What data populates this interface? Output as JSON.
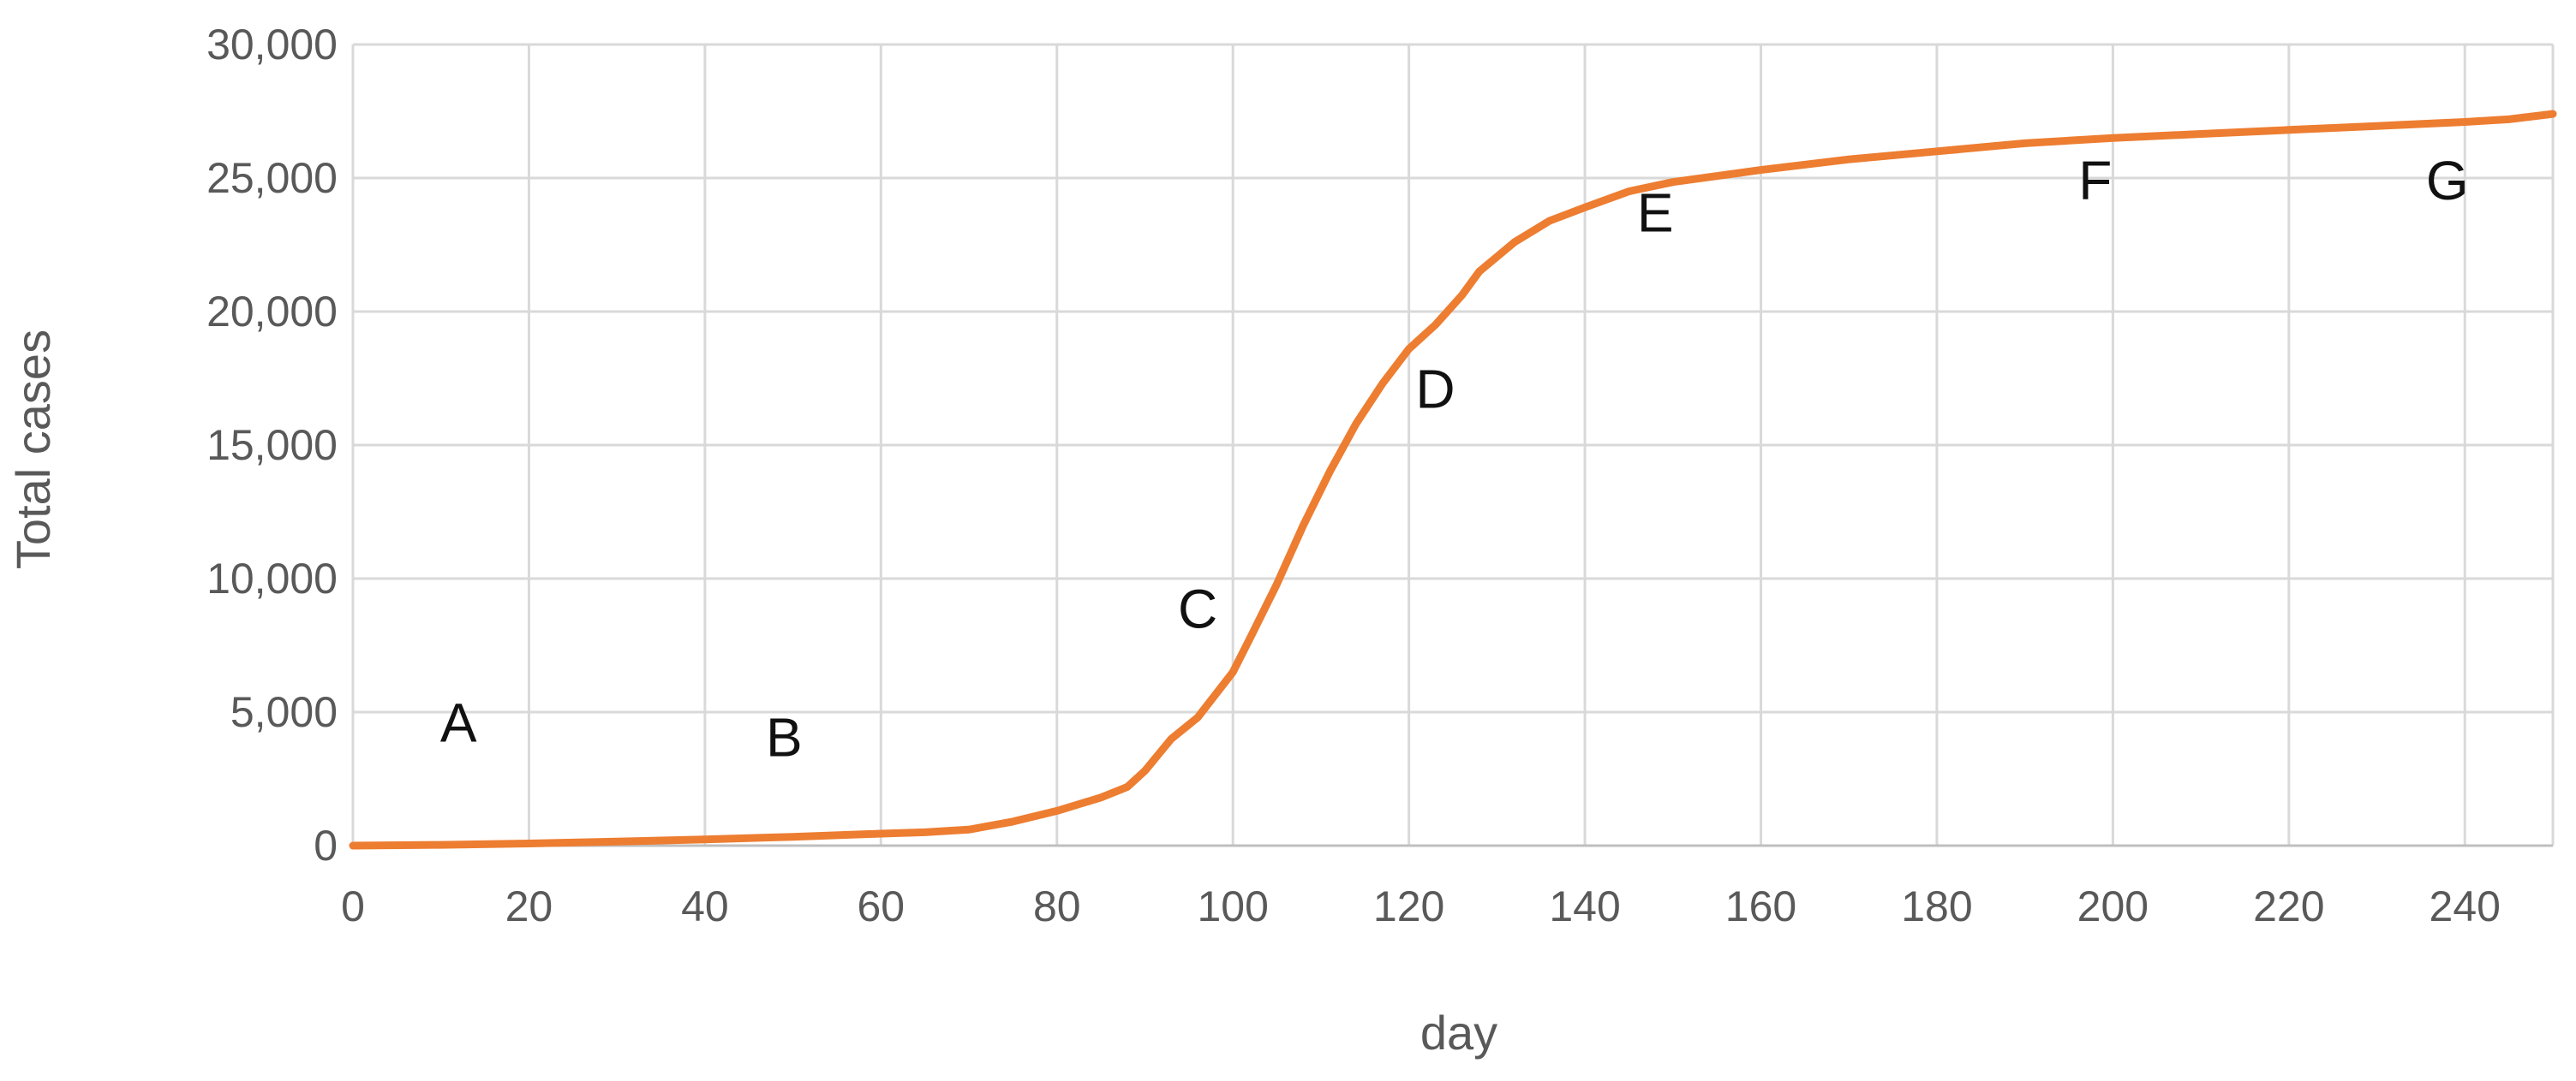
{
  "chart_data": {
    "type": "line",
    "title": "",
    "xlabel": "day",
    "ylabel": "Total cases",
    "xlim": [
      0,
      250
    ],
    "ylim": [
      0,
      30000
    ],
    "x_ticks": [
      0,
      20,
      40,
      60,
      80,
      100,
      120,
      140,
      160,
      180,
      200,
      220,
      240
    ],
    "y_ticks": [
      0,
      5000,
      10000,
      15000,
      20000,
      25000,
      30000
    ],
    "x_tick_labels": [
      "0",
      "20",
      "40",
      "60",
      "80",
      "100",
      "120",
      "140",
      "160",
      "180",
      "200",
      "220",
      "240"
    ],
    "y_tick_labels": [
      "0",
      "5,000",
      "10,000",
      "15,000",
      "20,000",
      "25,000",
      "30,000"
    ],
    "grid": true,
    "legend": "none",
    "series": [
      {
        "color": "#ED7D31",
        "x": [
          0,
          10,
          20,
          30,
          40,
          50,
          60,
          65,
          70,
          75,
          80,
          85,
          88,
          90,
          93,
          96,
          100,
          102,
          105,
          108,
          111,
          114,
          117,
          120,
          123,
          126,
          128,
          132,
          136,
          140,
          145,
          150,
          160,
          170,
          180,
          190,
          200,
          210,
          220,
          230,
          240,
          245,
          250
        ],
        "y": [
          0,
          30,
          80,
          150,
          230,
          330,
          450,
          500,
          600,
          900,
          1300,
          1800,
          2200,
          2800,
          4000,
          4800,
          6500,
          7800,
          9800,
          12000,
          14000,
          15800,
          17300,
          18600,
          19500,
          20600,
          21500,
          22600,
          23400,
          23900,
          24500,
          24850,
          25300,
          25700,
          26000,
          26300,
          26500,
          26650,
          26800,
          26950,
          27100,
          27200,
          27400
        ]
      }
    ],
    "annotations": [
      {
        "text": "A",
        "x": 12,
        "y": 3900
      },
      {
        "text": "B",
        "x": 49,
        "y": 3350
      },
      {
        "text": "C",
        "x": 96,
        "y": 8150
      },
      {
        "text": "D",
        "x": 123,
        "y": 16400
      },
      {
        "text": "E",
        "x": 148,
        "y": 23000
      },
      {
        "text": "F",
        "x": 198,
        "y": 24200
      },
      {
        "text": "G",
        "x": 238,
        "y": 24200
      }
    ]
  }
}
